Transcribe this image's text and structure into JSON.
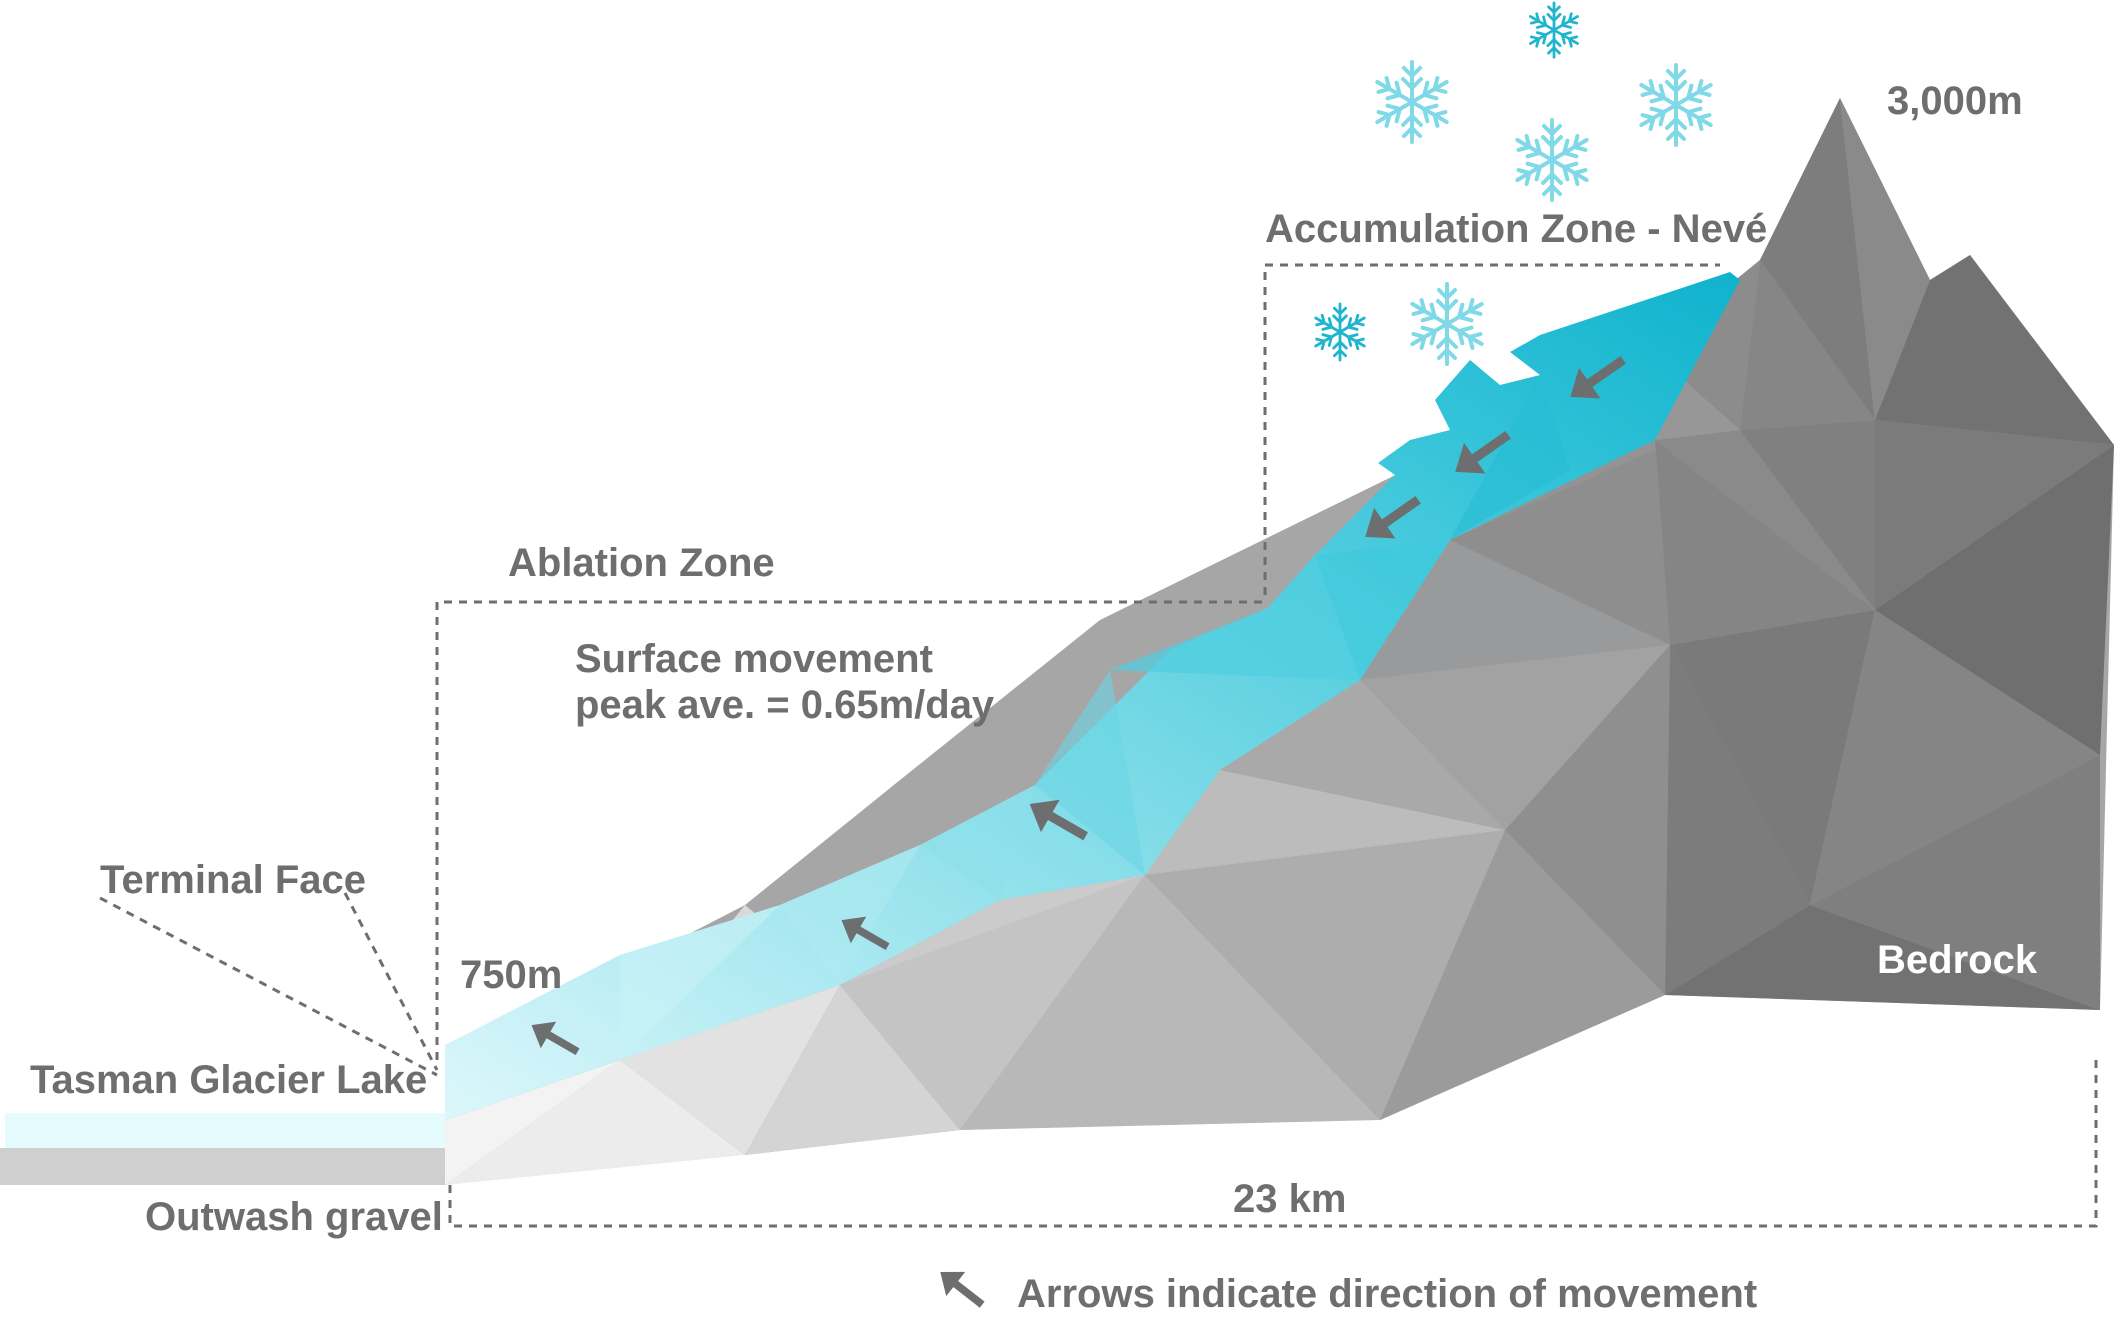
{
  "labels": {
    "elevation_top": "3,000m",
    "accumulation_zone": "Accumulation Zone - Nevé",
    "ablation_zone": "Ablation Zone",
    "surface_movement_line1": "Surface movement",
    "surface_movement_line2": "peak ave. = 0.65m/day",
    "terminal_face": "Terminal Face",
    "elevation_bottom": "750m",
    "lake": "Tasman Glacier Lake",
    "outwash": "Outwash gravel",
    "bedrock": "Bedrock",
    "length": "23 km",
    "legend": "Arrows indicate direction of movement"
  },
  "colors": {
    "ice_light": "#d8f6fa",
    "ice_mid": "#5fd3e3",
    "ice_dark": "#10b4cf",
    "rock_light": "#ececec",
    "rock_mid": "#a8a8a9",
    "rock_dark": "#6e6f70",
    "label_gray": "#6d6e70",
    "snowflake_light": "#7fd9e6",
    "snowflake_dark": "#1fb5cf"
  },
  "icons": {
    "snowflake": "snowflake-icon",
    "arrow": "flow-arrow-icon"
  }
}
